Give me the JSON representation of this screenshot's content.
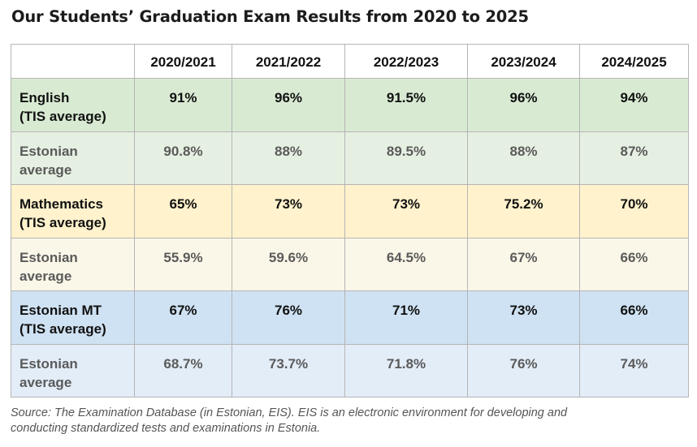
{
  "title": "Our Students’ Graduation Exam Results from 2020 to 2025",
  "table": {
    "columns": [
      "",
      "2020/2021",
      "2021/2022",
      "2022/2023",
      "2023/2024",
      "2024/2025"
    ],
    "rows": [
      {
        "label_line1": "English",
        "label_line2": "(TIS average)",
        "values": [
          "91%",
          "96%",
          "91.5%",
          "96%",
          "94%"
        ]
      },
      {
        "label_line1": "Estonian",
        "label_line2": "average",
        "values": [
          "90.8%",
          "88%",
          "89.5%",
          "88%",
          "87%"
        ]
      },
      {
        "label_line1": "Mathematics",
        "label_line2": "(TIS average)",
        "values": [
          "65%",
          "73%",
          "73%",
          "75.2%",
          "70%"
        ]
      },
      {
        "label_line1": "Estonian",
        "label_line2": "average",
        "values": [
          "55.9%",
          "59.6%",
          "64.5%",
          "67%",
          "66%"
        ]
      },
      {
        "label_line1": "Estonian MT",
        "label_line2": "(TIS average)",
        "values": [
          "67%",
          "76%",
          "71%",
          "73%",
          "66%"
        ]
      },
      {
        "label_line1": "Estonian",
        "label_line2": "average",
        "values": [
          "68.7%",
          "73.7%",
          "71.8%",
          "76%",
          "74%"
        ]
      }
    ]
  },
  "colors": {
    "english_tis": "#d9ead3",
    "english_avg": "#e6f0e2",
    "math_tis": "#fff2cc",
    "math_avg": "#fbf7e8",
    "estonian_tis": "#cfe2f3",
    "estonian_avg": "#e3edf8"
  },
  "source": {
    "line1": "Source: The Examination Database (in Estonian, EIS). EIS is an electronic environment for developing and",
    "line2": "conducting standardized tests and examinations in Estonia."
  }
}
